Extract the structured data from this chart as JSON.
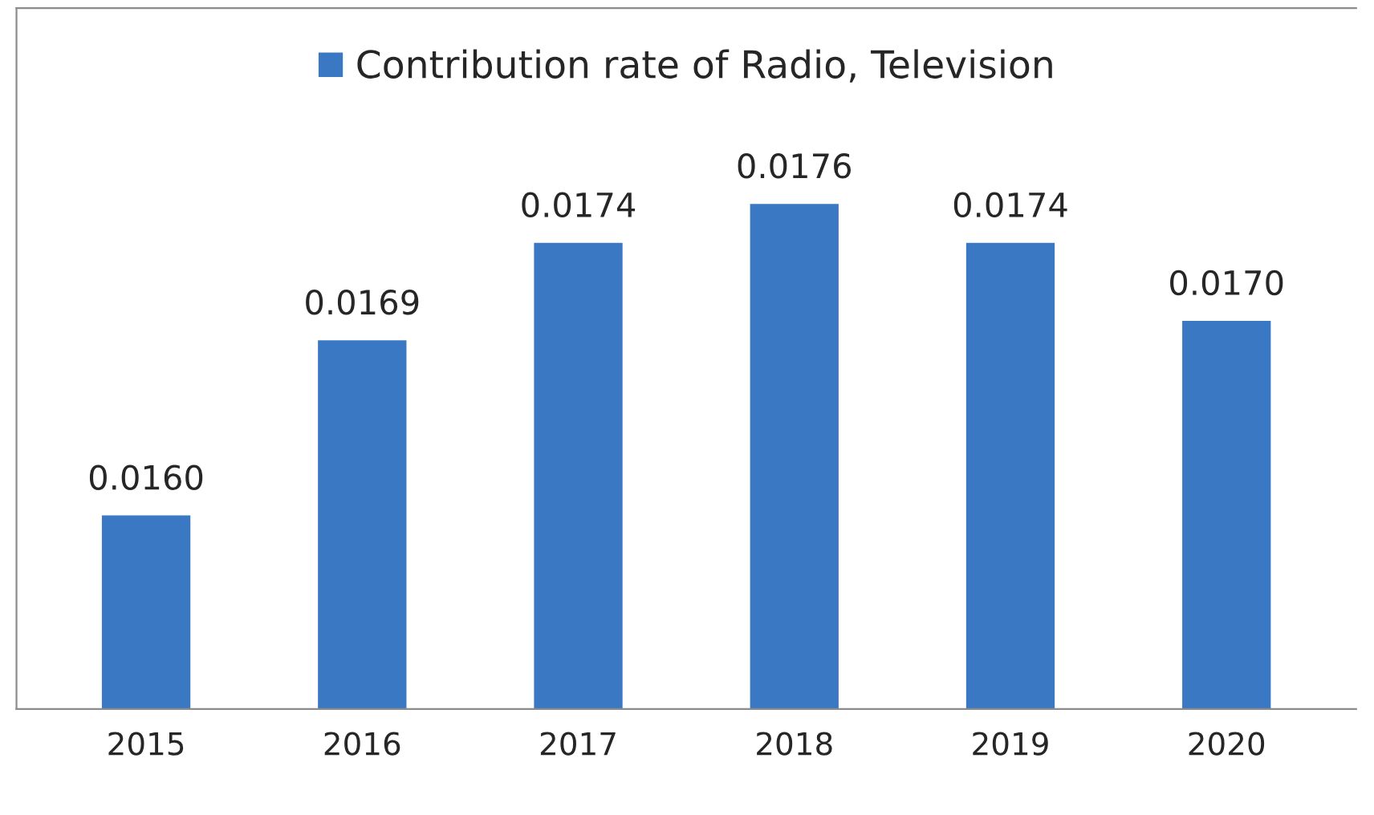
{
  "chart_data": {
    "type": "bar",
    "categories": [
      "2015",
      "2016",
      "2017",
      "2018",
      "2019",
      "2020"
    ],
    "series": [
      {
        "name": "Contribution rate of Radio, Television",
        "color": "#3a78c4",
        "values": [
          0.016,
          0.0169,
          0.0174,
          0.0176,
          0.0174,
          0.017
        ],
        "value_labels": [
          "0.0160",
          "0.0169",
          "0.0174",
          "0.0176",
          "0.0174",
          "0.0170"
        ]
      }
    ],
    "ylim": [
      0.015,
      0.0186
    ],
    "tick_labels": "x",
    "legend": "top",
    "grid": false
  }
}
